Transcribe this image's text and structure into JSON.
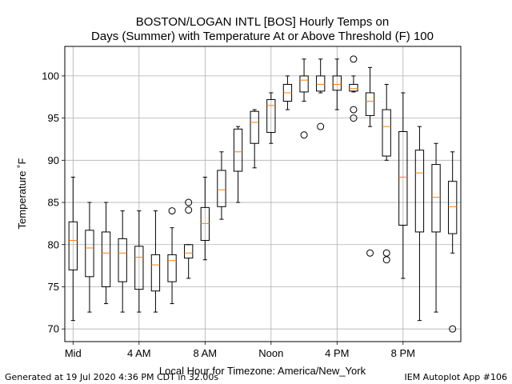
{
  "chart_data": {
    "type": "box",
    "title": "BOSTON/LOGAN INTL [BOS] Hourly Temps on",
    "subtitle": "Days (Summer) with Temperature At or Above Threshold (F) 100",
    "xlabel": "Local Hour for Timezone: America/New_York",
    "ylabel": "Temperature ˚F",
    "ylim": [
      68.5,
      103.5
    ],
    "xlim": [
      -0.5,
      23.5
    ],
    "yticks": [
      70,
      75,
      80,
      85,
      90,
      95,
      100
    ],
    "xticks": [
      {
        "hour": 0,
        "label": "Mid"
      },
      {
        "hour": 4,
        "label": "4 AM"
      },
      {
        "hour": 8,
        "label": "8 AM"
      },
      {
        "hour": 12,
        "label": "Noon"
      },
      {
        "hour": 16,
        "label": "4 PM"
      },
      {
        "hour": 20,
        "label": "8 PM"
      }
    ],
    "grid": true,
    "box_color": "#000000",
    "median_color": "#ff7f0e",
    "boxes": [
      {
        "hour": 0,
        "whislo": 71,
        "q1": 77,
        "med": 80.5,
        "q3": 82.7,
        "whishi": 88,
        "fliers": []
      },
      {
        "hour": 1,
        "whislo": 72,
        "q1": 76.2,
        "med": 79.6,
        "q3": 81.7,
        "whishi": 85,
        "fliers": []
      },
      {
        "hour": 2,
        "whislo": 73,
        "q1": 75,
        "med": 79,
        "q3": 81.5,
        "whishi": 85,
        "fliers": []
      },
      {
        "hour": 3,
        "whislo": 72,
        "q1": 75.6,
        "med": 79,
        "q3": 80.7,
        "whishi": 84,
        "fliers": []
      },
      {
        "hour": 4,
        "whislo": 72,
        "q1": 74.7,
        "med": 78.5,
        "q3": 79.8,
        "whishi": 84,
        "fliers": []
      },
      {
        "hour": 5,
        "whislo": 72,
        "q1": 74.5,
        "med": 77.6,
        "q3": 78.8,
        "whishi": 84,
        "fliers": []
      },
      {
        "hour": 6,
        "whislo": 73,
        "q1": 75.6,
        "med": 78.1,
        "q3": 78.8,
        "whishi": 82,
        "fliers": [
          84
        ]
      },
      {
        "hour": 7,
        "whislo": 76,
        "q1": 78.4,
        "med": 79,
        "q3": 80,
        "whishi": 80,
        "fliers": [
          84.1,
          85
        ]
      },
      {
        "hour": 8,
        "whislo": 78.2,
        "q1": 80.5,
        "med": 82.5,
        "q3": 84.4,
        "whishi": 88,
        "fliers": []
      },
      {
        "hour": 9,
        "whislo": 83,
        "q1": 84.5,
        "med": 86.5,
        "q3": 88.8,
        "whishi": 91,
        "fliers": []
      },
      {
        "hour": 10,
        "whislo": 85,
        "q1": 88.7,
        "med": 91,
        "q3": 93.7,
        "whishi": 94,
        "fliers": []
      },
      {
        "hour": 11,
        "whislo": 89.1,
        "q1": 92,
        "med": 94.5,
        "q3": 95.8,
        "whishi": 96,
        "fliers": []
      },
      {
        "hour": 12,
        "whislo": 92,
        "q1": 93.3,
        "med": 96.5,
        "q3": 97.2,
        "whishi": 98,
        "fliers": []
      },
      {
        "hour": 13,
        "whislo": 96,
        "q1": 97,
        "med": 98,
        "q3": 99,
        "whishi": 100,
        "fliers": []
      },
      {
        "hour": 14,
        "whislo": 97,
        "q1": 98.1,
        "med": 99.5,
        "q3": 100,
        "whishi": 102,
        "fliers": [
          93
        ]
      },
      {
        "hour": 15,
        "whislo": 98,
        "q1": 98.2,
        "med": 99,
        "q3": 100,
        "whishi": 102,
        "fliers": [
          94
        ]
      },
      {
        "hour": 16,
        "whislo": 96,
        "q1": 98.3,
        "med": 99,
        "q3": 100,
        "whishi": 102,
        "fliers": []
      },
      {
        "hour": 17,
        "whislo": 98.1,
        "q1": 98.2,
        "med": 98.5,
        "q3": 99,
        "whishi": 100,
        "fliers": [
          102,
          96,
          95
        ]
      },
      {
        "hour": 18,
        "whislo": 94,
        "q1": 95.3,
        "med": 97,
        "q3": 98,
        "whishi": 101,
        "fliers": [
          79
        ]
      },
      {
        "hour": 19,
        "whislo": 90,
        "q1": 90.5,
        "med": 94,
        "q3": 96,
        "whishi": 99,
        "fliers": [
          79,
          78.2
        ]
      },
      {
        "hour": 20,
        "whislo": 76,
        "q1": 82.3,
        "med": 88,
        "q3": 93.4,
        "whishi": 98,
        "fliers": []
      },
      {
        "hour": 21,
        "whislo": 71,
        "q1": 81.5,
        "med": 88.5,
        "q3": 91.2,
        "whishi": 94,
        "fliers": []
      },
      {
        "hour": 22,
        "whislo": 72,
        "q1": 81.5,
        "med": 85.6,
        "q3": 89.5,
        "whishi": 92,
        "fliers": []
      },
      {
        "hour": 23,
        "whislo": 79,
        "q1": 81.3,
        "med": 84.5,
        "q3": 87.5,
        "whishi": 91,
        "fliers": [
          70
        ]
      }
    ]
  },
  "footer": {
    "left": "Generated at 19 Jul 2020 4:36 PM CDT in 32.00s",
    "right": "IEM Autoplot App #106"
  }
}
